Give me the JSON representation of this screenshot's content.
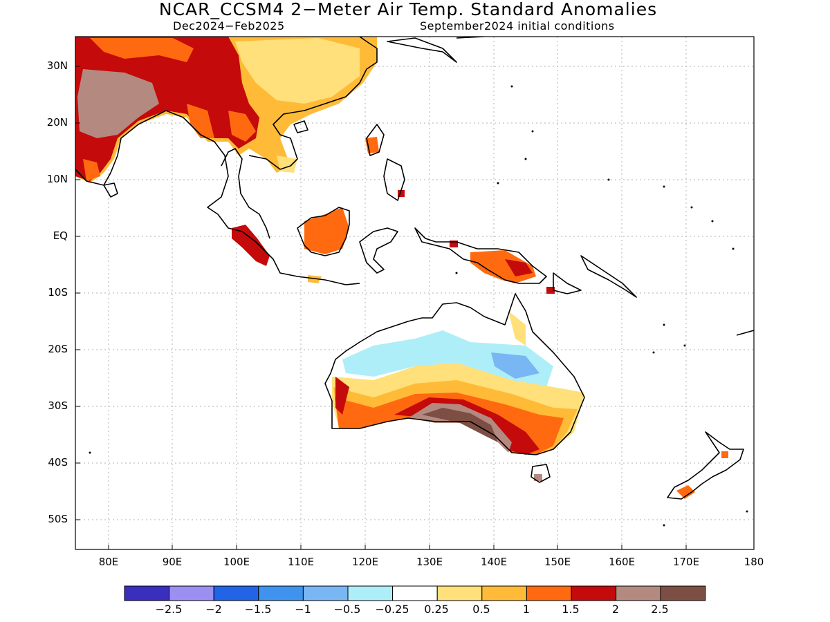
{
  "header": {
    "title": "NCAR_CCSM4 2−Meter Air Temp. Standard Anomalies",
    "period": "Dec2024−Feb2025",
    "init": "September2024 initial conditions"
  },
  "axes": {
    "lat_labels": [
      "30N",
      "20N",
      "10N",
      "EQ",
      "10S",
      "20S",
      "30S",
      "40S",
      "50S"
    ],
    "lon_labels": [
      "80E",
      "90E",
      "100E",
      "110E",
      "120E",
      "130E",
      "140E",
      "150E",
      "160E",
      "170E",
      "180"
    ]
  },
  "colorbar": {
    "labels": [
      "−2.5",
      "−2",
      "−1.5",
      "−1",
      "−0.5",
      "−0.25",
      "0.25",
      "0.5",
      "1",
      "1.5",
      "2",
      "2.5"
    ],
    "colors": [
      "#3a2ebf",
      "#9b8ff2",
      "#2165e6",
      "#3f93ef",
      "#78b6f4",
      "#aeeef8",
      "#ffffff",
      "#ffe07a",
      "#ffbb37",
      "#ff6a10",
      "#c40a0a",
      "#b48a80",
      "#7d4f44"
    ]
  }
}
